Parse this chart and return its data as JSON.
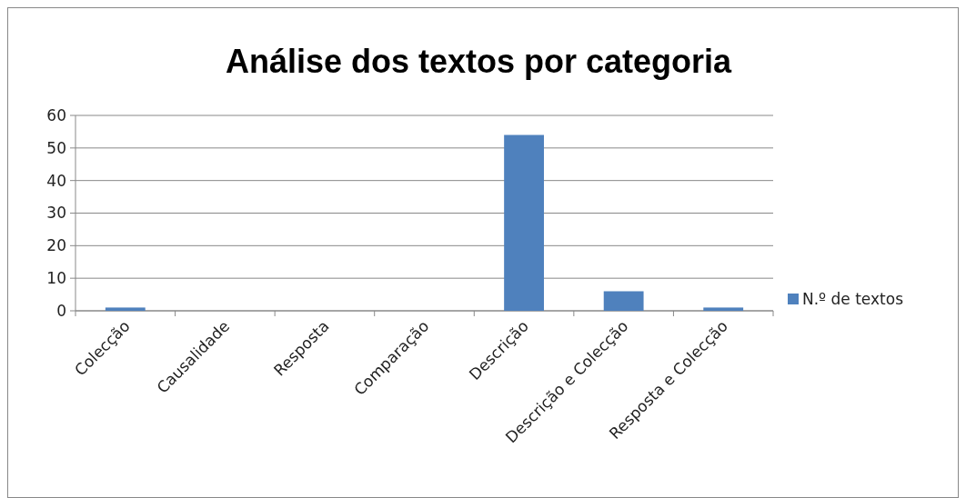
{
  "chart_data": {
    "type": "bar",
    "title": "Análise dos textos por categoria",
    "categories": [
      "Colecção",
      "Causalidade",
      "Resposta",
      "Comparação",
      "Descrição",
      "Descrição e Colecção",
      "Resposta e Colecção"
    ],
    "series": [
      {
        "name": "N.º de textos",
        "color": "#4f81bd",
        "values": [
          1,
          0,
          0,
          0,
          54,
          6,
          1
        ]
      }
    ],
    "ylim": [
      0,
      60
    ],
    "yticks": [
      0,
      10,
      20,
      30,
      40,
      50,
      60
    ],
    "grid": "y",
    "legend": "right"
  }
}
